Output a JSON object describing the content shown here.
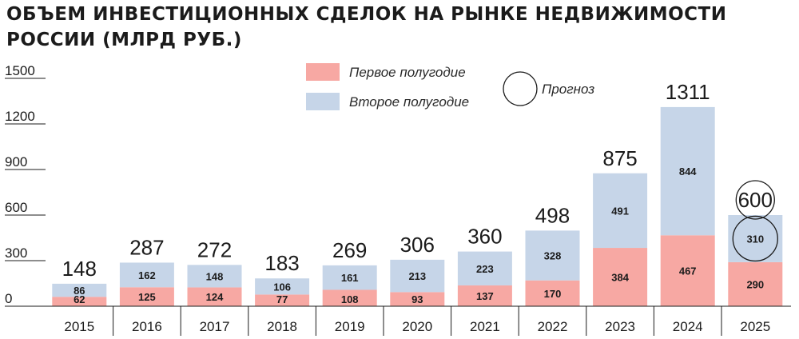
{
  "title_line1": "ОБЪЕМ ИНВЕСТИЦИОННЫХ СДЕЛОК НА РЫНКЕ НЕДВИЖИМОСТИ",
  "title_line2": "РОССИИ (МЛРД РУБ.)",
  "colors": {
    "first_half": "#f7a8a3",
    "second_half": "#c6d5e8",
    "text": "#1b1b1b"
  },
  "chart_data": {
    "type": "bar",
    "stacked": true,
    "title": "ОБЪЕМ ИНВЕСТИЦИОННЫХ СДЕЛОК НА РЫНКЕ НЕДВИЖИМОСТИ РОССИИ (МЛРД РУБ.)",
    "categories": [
      "2015",
      "2016",
      "2017",
      "2018",
      "2019",
      "2020",
      "2021",
      "2022",
      "2023",
      "2024",
      "2025"
    ],
    "series": [
      {
        "name": "Первое полугодие",
        "values": [
          62,
          125,
          124,
          77,
          108,
          93,
          137,
          170,
          384,
          467,
          290
        ]
      },
      {
        "name": "Второе полугодие",
        "values": [
          86,
          162,
          148,
          106,
          161,
          213,
          223,
          328,
          491,
          844,
          310
        ]
      }
    ],
    "totals": [
      148,
      287,
      272,
      183,
      269,
      306,
      360,
      498,
      875,
      1311,
      600
    ],
    "forecast_category": "2025",
    "forecast_label": "Прогноз",
    "ylim": [
      0,
      1500
    ],
    "yticks": [
      "0",
      "300",
      "600",
      "900",
      "1200",
      "1500"
    ],
    "legend_position": "top-center"
  }
}
